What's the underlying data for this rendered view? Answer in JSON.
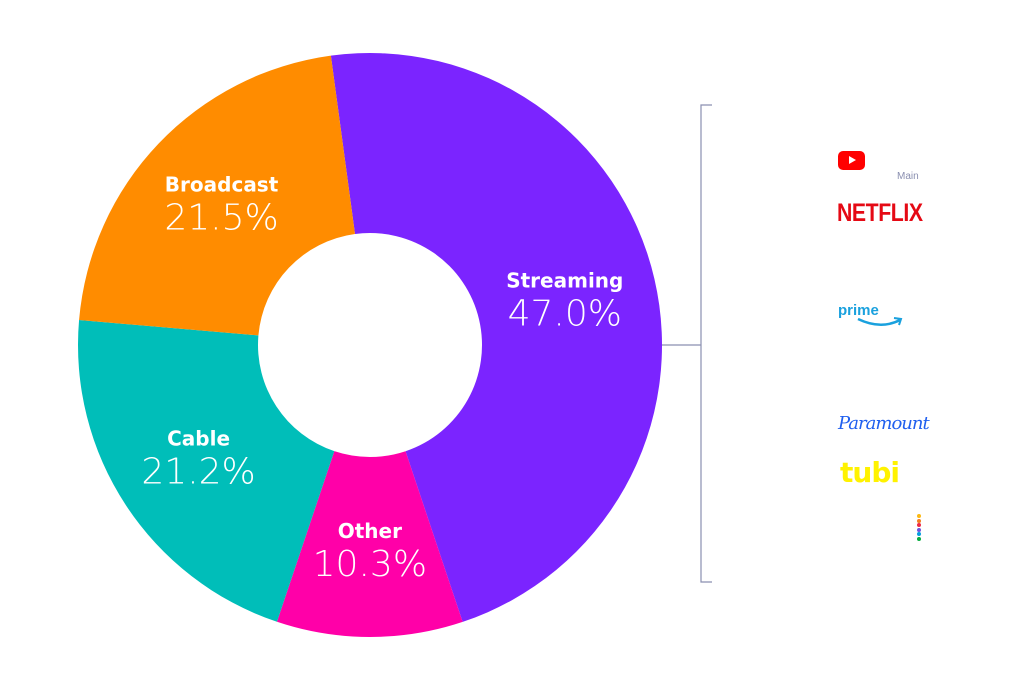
{
  "chart_data": {
    "type": "pie",
    "donut": true,
    "categories": [
      "Streaming",
      "Other",
      "Cable",
      "Broadcast"
    ],
    "values": [
      47.0,
      10.3,
      21.2,
      21.5
    ],
    "labels": [
      "47.0%",
      "10.3%",
      "21.2%",
      "21.5%"
    ],
    "colors": [
      "#7B24FF",
      "#FF00A8",
      "#00BEB9",
      "#FF8C00"
    ],
    "legend": "none"
  },
  "streaming_breakdown": {
    "bracket_color": "#8A8FB0",
    "logos": [
      {
        "name": "YouTube",
        "icon": "youtube-logo",
        "color": "#FF0000"
      },
      {
        "name": "NETFLIX",
        "color": "#E50914"
      },
      {
        "name": "prime",
        "color": "#1AA1DE"
      },
      {
        "name": "Paramount",
        "color": "#1F5FEF"
      },
      {
        "name": "tubi",
        "color": "#FFF200"
      },
      {
        "name": "peacock",
        "icon": "peacock-dots-logo"
      }
    ],
    "main_label": "Main"
  }
}
